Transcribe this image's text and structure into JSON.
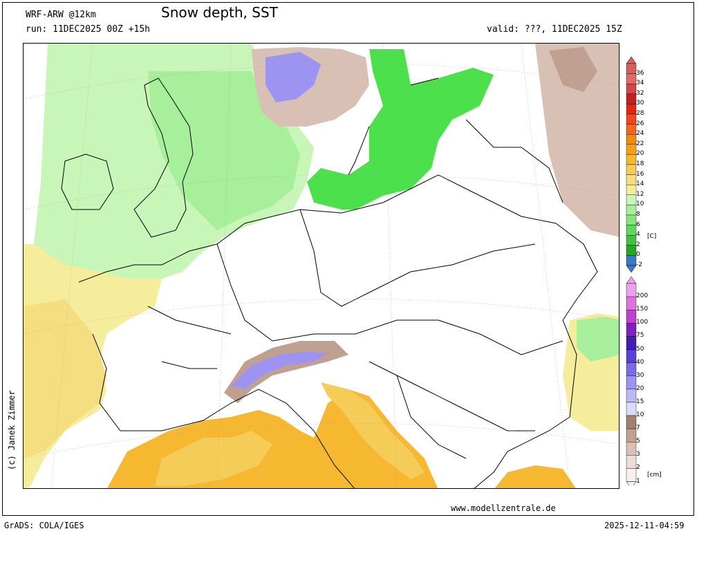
{
  "header": {
    "model": "WRF-ARW @12km",
    "title": "Snow depth, SST",
    "run": "run: 11DEC2025 00Z +15h",
    "valid": "valid: ???, 11DEC2025 15Z"
  },
  "credit": "(c) Janek Zimmer",
  "footer": {
    "website": "www.modellzentrale.de",
    "grads": "GrADS: COLA/IGES",
    "timestamp": "2025-12-11-04:59"
  },
  "sst_legend": {
    "unit": "[C]",
    "labels": [
      "36",
      "34",
      "32",
      "30",
      "28",
      "26",
      "24",
      "22",
      "20",
      "18",
      "16",
      "14",
      "12",
      "10",
      "8",
      "6",
      "4",
      "2",
      "0",
      "-2"
    ],
    "colors": [
      "#d66060",
      "#e06a6a",
      "#d04848",
      "#c02020",
      "#e02a10",
      "#f04818",
      "#f06820",
      "#f28a10",
      "#f5a010",
      "#f5b830",
      "#f5cc58",
      "#f5de80",
      "#f5ec9c",
      "#c8f5b8",
      "#a8ef9c",
      "#86e57a",
      "#5cd95a",
      "#3cc43c",
      "#22a822",
      "#3a78c8"
    ]
  },
  "snow_legend": {
    "unit": "[cm]",
    "labels": [
      "200",
      "150",
      "100",
      "75",
      "50",
      "40",
      "30",
      "20",
      "15",
      "10",
      "7",
      "5",
      "3",
      "2",
      "1"
    ],
    "colors": [
      "#f0a0f0",
      "#e070e0",
      "#c040d0",
      "#8020c0",
      "#4020b0",
      "#5a40d8",
      "#7a6ae8",
      "#9c94f0",
      "#bab8f5",
      "#dcdcfa",
      "#a08070",
      "#c0a090",
      "#d8c0b4",
      "#ecdcd4",
      "#f8f0ec"
    ]
  },
  "colors": {
    "sea_green_light": "#c8f5b8",
    "sea_green_mid": "#a8ef9c",
    "sea_green_dark": "#86e57a",
    "baltic_green": "#4ce04c",
    "sea_yellow": "#f5ec9c",
    "sea_orange": "#f5b830",
    "snow_brown": "#d8c0b4",
    "snow_blue": "#9c94f0"
  }
}
